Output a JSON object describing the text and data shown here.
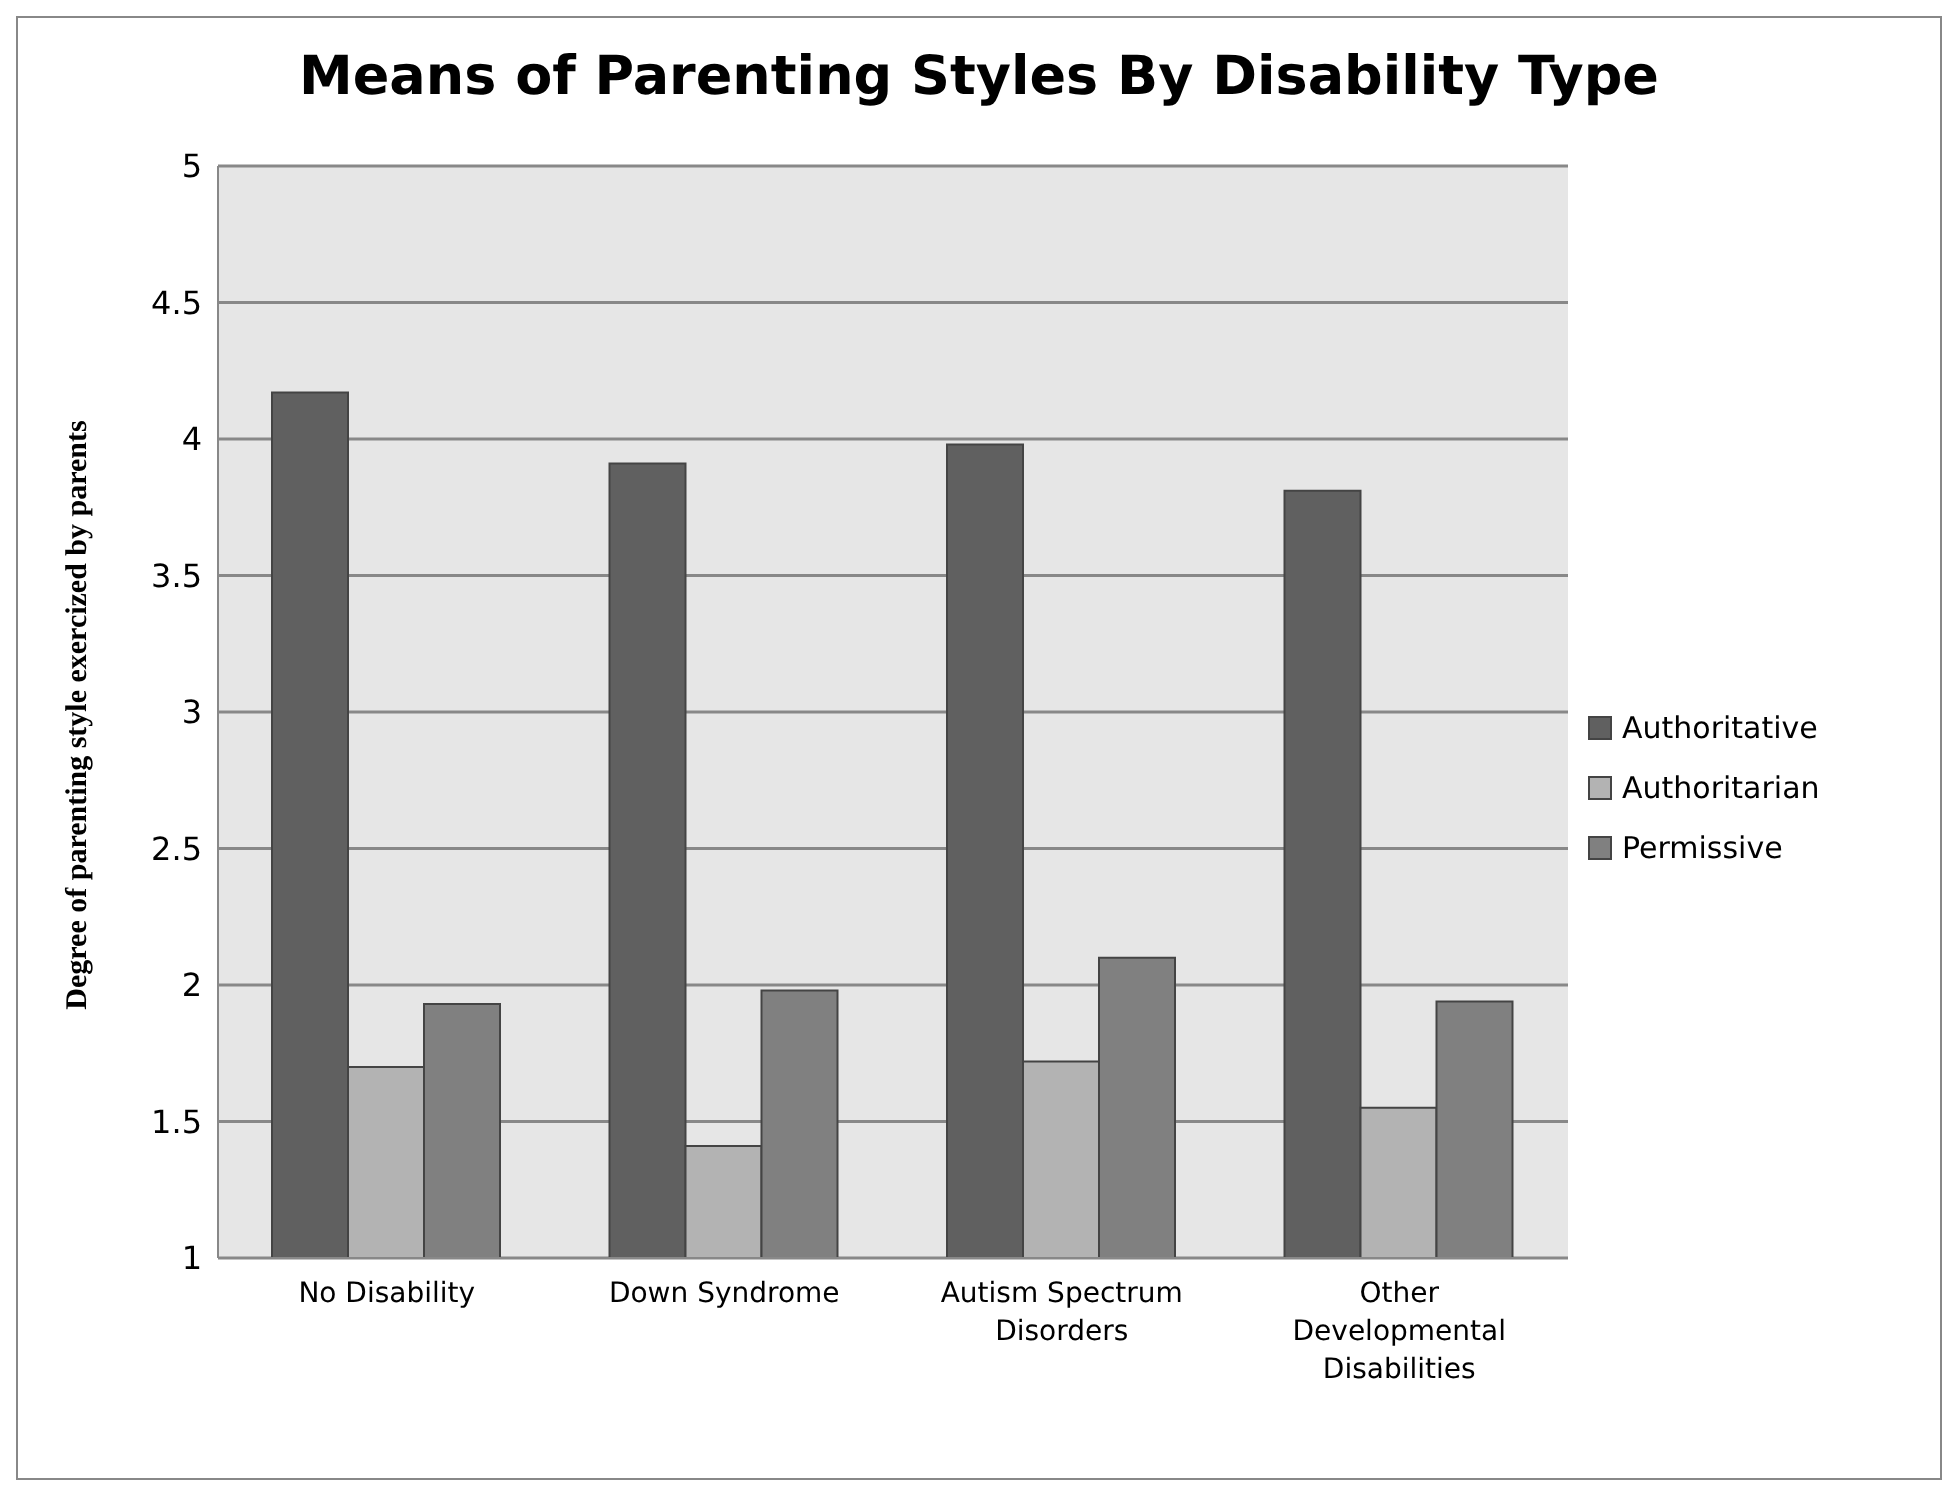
{
  "chart_data": {
    "type": "bar",
    "title": "Means of Parenting Styles By Disability Type",
    "ylabel": "Degree of parenting style exercized by parents",
    "categories": [
      "No Disability",
      "Down Syndrome",
      "Autism Spectrum Disorders",
      "Other Developmental Disabilities"
    ],
    "series": [
      {
        "name": "Authoritative",
        "color": "#606060",
        "values": [
          4.17,
          3.91,
          3.98,
          3.81
        ]
      },
      {
        "name": "Authoritarian",
        "color": "#b3b3b3",
        "values": [
          1.7,
          1.41,
          1.72,
          1.55
        ]
      },
      {
        "name": "Permissive",
        "color": "#808080",
        "values": [
          1.93,
          1.98,
          2.1,
          1.94
        ]
      }
    ],
    "ylim": [
      1,
      5
    ],
    "yticks": [
      1,
      1.5,
      2,
      2.5,
      3,
      3.5,
      4,
      4.5,
      5
    ],
    "grid": "y",
    "legend": "right"
  }
}
